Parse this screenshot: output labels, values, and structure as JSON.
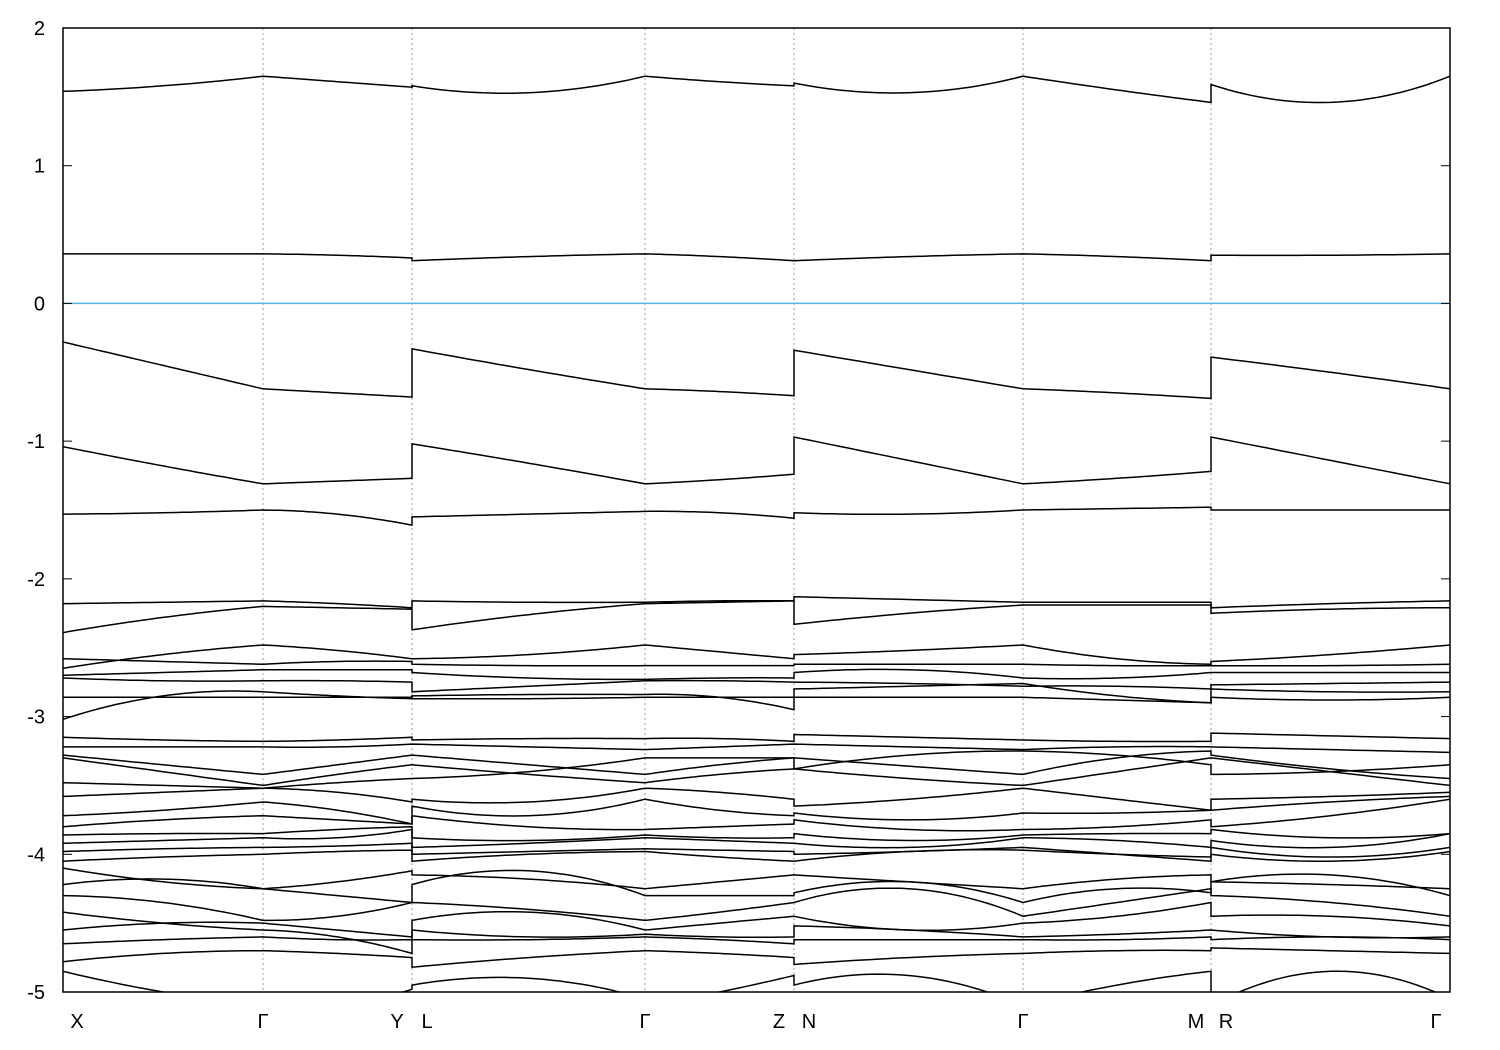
{
  "chart_data": {
    "type": "line",
    "title": "",
    "xlabel": "",
    "ylabel": "",
    "ylim": [
      -5,
      2
    ],
    "yticks": [
      "2",
      "1",
      "0",
      "-1",
      "-2",
      "-3",
      "-4",
      "-5"
    ],
    "xtick_labels": [
      "X",
      "Γ",
      "Y",
      "L",
      "Γ",
      "Z",
      "N",
      "Γ",
      "M",
      "R",
      "Γ"
    ],
    "path_segments": [
      "X-Γ",
      "Γ-Y",
      "L-Γ",
      "Γ-Z",
      "N-Γ",
      "Γ-M",
      "R-Γ"
    ],
    "fermi_level": 0,
    "fermi_color": "#56b4e9",
    "band_color": "#000000",
    "grid": "vertical dotted lines at high-symmetry points",
    "bands_note_samples": "energies at start, middle and end of each path segment",
    "bands": [
      [
        [
          1.54,
          1.58,
          1.65
        ],
        [
          1.65,
          1.61,
          1.57
        ],
        [
          1.58,
          1.53,
          1.65
        ],
        [
          1.65,
          1.61,
          1.58
        ],
        [
          1.6,
          1.53,
          1.65
        ],
        [
          1.65,
          1.55,
          1.46
        ],
        [
          1.59,
          1.46,
          1.65
        ]
      ],
      [
        [
          0.36,
          0.36,
          0.36
        ],
        [
          0.36,
          0.35,
          0.33
        ],
        [
          0.31,
          0.34,
          0.36
        ],
        [
          0.36,
          0.34,
          0.31
        ],
        [
          0.31,
          0.34,
          0.36
        ],
        [
          0.36,
          0.34,
          0.31
        ],
        [
          0.35,
          0.35,
          0.36
        ]
      ],
      [
        [
          -0.28,
          -0.45,
          -0.62
        ],
        [
          -0.62,
          -0.65,
          -0.68
        ],
        [
          -0.33,
          -0.48,
          -0.62
        ],
        [
          -0.62,
          -0.64,
          -0.67
        ],
        [
          -0.34,
          -0.48,
          -0.62
        ],
        [
          -0.62,
          -0.65,
          -0.69
        ],
        [
          -0.39,
          -0.5,
          -0.62
        ]
      ],
      [
        [
          -1.04,
          -1.18,
          -1.31
        ],
        [
          -1.31,
          -1.29,
          -1.27
        ],
        [
          -1.02,
          -1.16,
          -1.31
        ],
        [
          -1.31,
          -1.28,
          -1.24
        ],
        [
          -0.97,
          -1.14,
          -1.31
        ],
        [
          -1.31,
          -1.27,
          -1.22
        ],
        [
          -0.97,
          -1.14,
          -1.31
        ]
      ],
      [
        [
          -1.53,
          -1.52,
          -1.5
        ],
        [
          -1.5,
          -1.53,
          -1.61
        ],
        [
          -1.55,
          -1.53,
          -1.51
        ],
        [
          -1.51,
          -1.52,
          -1.56
        ],
        [
          -1.52,
          -1.53,
          -1.5
        ],
        [
          -1.5,
          -1.49,
          -1.48
        ],
        [
          -1.5,
          -1.5,
          -1.5
        ]
      ],
      [
        [
          -2.18,
          -2.17,
          -2.16
        ],
        [
          -2.16,
          -2.18,
          -2.21
        ],
        [
          -2.16,
          -2.17,
          -2.17
        ],
        [
          -2.17,
          -2.16,
          -2.16
        ],
        [
          -2.13,
          -2.15,
          -2.17
        ],
        [
          -2.17,
          -2.17,
          -2.17
        ],
        [
          -2.21,
          -2.18,
          -2.16
        ]
      ],
      [
        [
          -2.39,
          -2.28,
          -2.2
        ],
        [
          -2.2,
          -2.21,
          -2.22
        ],
        [
          -2.37,
          -2.26,
          -2.18
        ],
        [
          -2.18,
          -2.17,
          -2.16
        ],
        [
          -2.33,
          -2.25,
          -2.19
        ],
        [
          -2.19,
          -2.19,
          -2.19
        ],
        [
          -2.25,
          -2.22,
          -2.21
        ]
      ],
      [
        [
          -2.65,
          -2.55,
          -2.48
        ],
        [
          -2.48,
          -2.52,
          -2.58
        ],
        [
          -2.58,
          -2.55,
          -2.48
        ],
        [
          -2.48,
          -2.53,
          -2.58
        ],
        [
          -2.55,
          -2.52,
          -2.48
        ],
        [
          -2.48,
          -2.58,
          -2.62
        ],
        [
          -2.6,
          -2.55,
          -2.48
        ]
      ],
      [
        [
          -2.58,
          -2.6,
          -2.62
        ],
        [
          -2.62,
          -2.6,
          -2.6
        ],
        [
          -2.62,
          -2.63,
          -2.63
        ],
        [
          -2.63,
          -2.63,
          -2.63
        ],
        [
          -2.62,
          -2.62,
          -2.62
        ],
        [
          -2.62,
          -2.63,
          -2.63
        ],
        [
          -2.63,
          -2.63,
          -2.62
        ]
      ],
      [
        [
          -2.7,
          -2.68,
          -2.66
        ],
        [
          -2.66,
          -2.66,
          -2.66
        ],
        [
          -2.68,
          -2.72,
          -2.73
        ],
        [
          -2.73,
          -2.72,
          -2.72
        ],
        [
          -2.68,
          -2.66,
          -2.72
        ],
        [
          -2.72,
          -2.72,
          -2.68
        ],
        [
          -2.68,
          -2.68,
          -2.68
        ]
      ],
      [
        [
          -2.72,
          -2.74,
          -2.74
        ],
        [
          -2.74,
          -2.74,
          -2.75
        ],
        [
          -2.82,
          -2.78,
          -2.74
        ],
        [
          -2.74,
          -2.74,
          -2.75
        ],
        [
          -2.75,
          -2.76,
          -2.78
        ],
        [
          -2.78,
          -2.78,
          -2.8
        ],
        [
          -2.77,
          -2.76,
          -2.75
        ]
      ],
      [
        [
          -3.02,
          -2.85,
          -2.82
        ],
        [
          -2.82,
          -2.85,
          -2.87
        ],
        [
          -2.85,
          -2.84,
          -2.84
        ],
        [
          -2.84,
          -2.86,
          -2.95
        ],
        [
          -2.8,
          -2.78,
          -2.76
        ],
        [
          -2.76,
          -2.85,
          -2.9
        ],
        [
          -2.8,
          -2.82,
          -2.82
        ]
      ],
      [
        [
          -2.86,
          -2.86,
          -2.86
        ],
        [
          -2.86,
          -2.86,
          -2.86
        ],
        [
          -2.87,
          -2.87,
          -2.86
        ],
        [
          -2.86,
          -2.86,
          -2.86
        ],
        [
          -2.86,
          -2.86,
          -2.86
        ],
        [
          -2.86,
          -2.88,
          -2.9
        ],
        [
          -2.86,
          -2.88,
          -2.86
        ]
      ],
      [
        [
          -3.15,
          -3.17,
          -3.18
        ],
        [
          -3.18,
          -3.17,
          -3.15
        ],
        [
          -3.17,
          -3.16,
          -3.16
        ],
        [
          -3.16,
          -3.16,
          -3.18
        ],
        [
          -3.13,
          -3.15,
          -3.17
        ],
        [
          -3.17,
          -3.18,
          -3.18
        ],
        [
          -3.12,
          -3.14,
          -3.16
        ]
      ],
      [
        [
          -3.22,
          -3.22,
          -3.22
        ],
        [
          -3.22,
          -3.22,
          -3.2
        ],
        [
          -3.2,
          -3.22,
          -3.24
        ],
        [
          -3.24,
          -3.22,
          -3.2
        ],
        [
          -3.2,
          -3.22,
          -3.24
        ],
        [
          -3.24,
          -3.22,
          -3.22
        ],
        [
          -3.22,
          -3.24,
          -3.26
        ]
      ],
      [
        [
          -3.28,
          -3.35,
          -3.42
        ],
        [
          -3.42,
          -3.35,
          -3.28
        ],
        [
          -3.28,
          -3.35,
          -3.42
        ],
        [
          -3.42,
          -3.35,
          -3.3
        ],
        [
          -3.3,
          -3.36,
          -3.42
        ],
        [
          -3.42,
          -3.3,
          -3.25
        ],
        [
          -3.28,
          -3.38,
          -3.45
        ]
      ],
      [
        [
          -3.3,
          -3.4,
          -3.5
        ],
        [
          -3.5,
          -3.42,
          -3.35
        ],
        [
          -3.35,
          -3.42,
          -3.48
        ],
        [
          -3.48,
          -3.42,
          -3.38
        ],
        [
          -3.38,
          -3.45,
          -3.5
        ],
        [
          -3.5,
          -3.4,
          -3.3
        ],
        [
          -3.3,
          -3.4,
          -3.5
        ]
      ],
      [
        [
          -3.48,
          -3.5,
          -3.52
        ],
        [
          -3.52,
          -3.48,
          -3.45
        ],
        [
          -3.45,
          -3.4,
          -3.3
        ],
        [
          -3.3,
          -3.3,
          -3.3
        ],
        [
          -3.38,
          -3.28,
          -3.25
        ],
        [
          -3.25,
          -3.28,
          -3.35
        ],
        [
          -3.42,
          -3.4,
          -3.35
        ]
      ],
      [
        [
          -3.58,
          -3.55,
          -3.52
        ],
        [
          -3.52,
          -3.55,
          -3.62
        ],
        [
          -3.6,
          -3.62,
          -3.52
        ],
        [
          -3.52,
          -3.55,
          -3.6
        ],
        [
          -3.65,
          -3.6,
          -3.52
        ],
        [
          -3.52,
          -3.6,
          -3.68
        ],
        [
          -3.6,
          -3.58,
          -3.55
        ]
      ],
      [
        [
          -3.72,
          -3.68,
          -3.62
        ],
        [
          -3.62,
          -3.68,
          -3.78
        ],
        [
          -3.65,
          -3.72,
          -3.6
        ],
        [
          -3.6,
          -3.68,
          -3.72
        ],
        [
          -3.7,
          -3.75,
          -3.7
        ],
        [
          -3.7,
          -3.7,
          -3.68
        ],
        [
          -3.68,
          -3.62,
          -3.58
        ]
      ],
      [
        [
          -3.8,
          -3.75,
          -3.72
        ],
        [
          -3.72,
          -3.75,
          -3.78
        ],
        [
          -3.72,
          -3.8,
          -3.82
        ],
        [
          -3.82,
          -3.8,
          -3.78
        ],
        [
          -3.75,
          -3.82,
          -3.82
        ],
        [
          -3.82,
          -3.8,
          -3.75
        ],
        [
          -3.8,
          -3.72,
          -3.6
        ]
      ],
      [
        [
          -3.86,
          -3.85,
          -3.85
        ],
        [
          -3.85,
          -3.82,
          -3.8
        ],
        [
          -3.88,
          -3.9,
          -3.86
        ],
        [
          -3.86,
          -3.88,
          -3.88
        ],
        [
          -3.85,
          -3.9,
          -3.86
        ],
        [
          -3.86,
          -3.85,
          -3.85
        ],
        [
          -3.82,
          -3.88,
          -3.85
        ]
      ],
      [
        [
          -3.92,
          -3.9,
          -3.88
        ],
        [
          -3.88,
          -3.88,
          -3.82
        ],
        [
          -3.95,
          -3.92,
          -3.88
        ],
        [
          -3.88,
          -3.9,
          -3.92
        ],
        [
          -3.92,
          -3.95,
          -3.88
        ],
        [
          -3.88,
          -3.9,
          -3.95
        ],
        [
          -3.9,
          -3.95,
          -3.85
        ]
      ],
      [
        [
          -3.98,
          -3.96,
          -3.95
        ],
        [
          -3.95,
          -3.94,
          -3.92
        ],
        [
          -4.0,
          -3.98,
          -3.96
        ],
        [
          -3.96,
          -3.97,
          -3.98
        ],
        [
          -4.0,
          -3.98,
          -3.95
        ],
        [
          -3.95,
          -4.0,
          -4.05
        ],
        [
          -3.95,
          -4.02,
          -3.95
        ]
      ],
      [
        [
          -4.05,
          -4.02,
          -4.0
        ],
        [
          -4.0,
          -3.98,
          -3.97
        ],
        [
          -4.05,
          -4.0,
          -3.98
        ],
        [
          -3.98,
          -4.02,
          -4.05
        ],
        [
          -4.05,
          -3.98,
          -3.97
        ],
        [
          -3.97,
          -4.0,
          -4.02
        ],
        [
          -4.0,
          -4.05,
          -3.98
        ]
      ],
      [
        [
          -4.1,
          -4.2,
          -4.25
        ],
        [
          -4.25,
          -4.2,
          -4.12
        ],
        [
          -4.15,
          -4.18,
          -4.25
        ],
        [
          -4.25,
          -4.2,
          -4.15
        ],
        [
          -4.15,
          -4.2,
          -4.25
        ],
        [
          -4.25,
          -4.18,
          -4.15
        ],
        [
          -4.2,
          -4.22,
          -4.25
        ]
      ],
      [
        [
          -4.22,
          -4.18,
          -4.25
        ],
        [
          -4.25,
          -4.3,
          -4.35
        ],
        [
          -4.22,
          -4.12,
          -4.3
        ],
        [
          -4.3,
          -4.3,
          -4.3
        ],
        [
          -4.28,
          -4.2,
          -4.35
        ],
        [
          -4.35,
          -4.25,
          -4.28
        ],
        [
          -4.2,
          -4.15,
          -4.3
        ]
      ],
      [
        [
          -4.3,
          -4.35,
          -4.48
        ],
        [
          -4.48,
          -4.45,
          -4.35
        ],
        [
          -4.35,
          -4.4,
          -4.48
        ],
        [
          -4.48,
          -4.42,
          -4.35
        ],
        [
          -4.35,
          -4.25,
          -4.45
        ],
        [
          -4.45,
          -4.35,
          -4.25
        ],
        [
          -4.3,
          -4.35,
          -4.45
        ]
      ],
      [
        [
          -4.42,
          -4.5,
          -4.55
        ],
        [
          -4.55,
          -4.6,
          -4.72
        ],
        [
          -4.48,
          -4.42,
          -4.55
        ],
        [
          -4.55,
          -4.5,
          -4.45
        ],
        [
          -4.45,
          -4.55,
          -4.5
        ],
        [
          -4.5,
          -4.45,
          -4.35
        ],
        [
          -4.45,
          -4.45,
          -4.52
        ]
      ],
      [
        [
          -4.55,
          -4.5,
          -4.5
        ],
        [
          -4.5,
          -4.55,
          -4.6
        ],
        [
          -4.55,
          -4.6,
          -4.58
        ],
        [
          -4.58,
          -4.6,
          -4.6
        ],
        [
          -4.52,
          -4.55,
          -4.6
        ],
        [
          -4.6,
          -4.58,
          -4.55
        ],
        [
          -4.55,
          -4.6,
          -4.6
        ]
      ],
      [
        [
          -4.65,
          -4.62,
          -4.6
        ],
        [
          -4.6,
          -4.62,
          -4.62
        ],
        [
          -4.62,
          -4.62,
          -4.6
        ],
        [
          -4.6,
          -4.62,
          -4.65
        ],
        [
          -4.62,
          -4.62,
          -4.62
        ],
        [
          -4.62,
          -4.62,
          -4.6
        ],
        [
          -4.62,
          -4.6,
          -4.62
        ]
      ],
      [
        [
          -4.78,
          -4.72,
          -4.7
        ],
        [
          -4.7,
          -4.72,
          -4.75
        ],
        [
          -4.82,
          -4.75,
          -4.7
        ],
        [
          -4.7,
          -4.72,
          -4.75
        ],
        [
          -4.8,
          -4.75,
          -4.72
        ],
        [
          -4.72,
          -4.7,
          -4.7
        ],
        [
          -4.68,
          -4.7,
          -4.72
        ]
      ],
      [
        [
          -4.85,
          -5.0,
          -5.1
        ],
        [
          -5.1,
          -5.1,
          -4.98
        ],
        [
          -4.95,
          -4.9,
          -5.05
        ],
        [
          -5.1,
          -5.0,
          -4.88
        ],
        [
          -4.95,
          -4.88,
          -5.1
        ],
        [
          -5.1,
          -4.95,
          -4.85
        ],
        [
          -5.1,
          -4.85,
          -5.05
        ]
      ]
    ]
  }
}
